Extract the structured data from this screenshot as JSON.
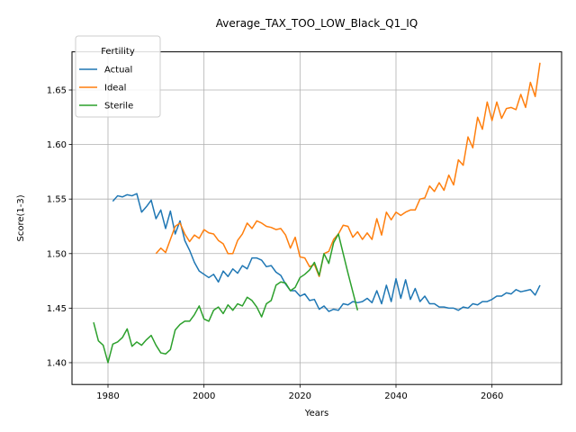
{
  "chart_data": {
    "type": "line",
    "title": "Average_TAX_TOO_LOW_Black_Q1_IQ",
    "xlabel": "Years",
    "ylabel": "Score(1-3)",
    "xlim": [
      1972.5,
      2074.5
    ],
    "ylim": [
      1.38,
      1.685
    ],
    "xticks": [
      1980,
      2000,
      2020,
      2040,
      2060
    ],
    "yticks": [
      1.4,
      1.45,
      1.5,
      1.55,
      1.6,
      1.65
    ],
    "grid": true,
    "legend": {
      "title": "Fertility",
      "placement": "top-left"
    },
    "series": [
      {
        "name": "Actual",
        "color": "#1f77b4",
        "x": [
          1981,
          1982,
          1983,
          1984,
          1985,
          1986,
          1987,
          1988,
          1989,
          1990,
          1991,
          1992,
          1993,
          1994,
          1995,
          1996,
          1997,
          1998,
          1999,
          2000,
          2001,
          2002,
          2003,
          2004,
          2005,
          2006,
          2007,
          2008,
          2009,
          2010,
          2011,
          2012,
          2013,
          2014,
          2015,
          2016,
          2017,
          2018,
          2019,
          2020,
          2021,
          2022,
          2023,
          2024,
          2025,
          2026,
          2027,
          2028,
          2029,
          2030,
          2031,
          2032,
          2033,
          2034,
          2035,
          2036,
          2037,
          2038,
          2039,
          2040,
          2041,
          2042,
          2043,
          2044,
          2045,
          2046,
          2047,
          2048,
          2049,
          2050,
          2051,
          2052,
          2053,
          2054,
          2055,
          2056,
          2057,
          2058,
          2059,
          2060,
          2061,
          2062,
          2063,
          2064,
          2065,
          2066,
          2067,
          2068,
          2069,
          2070
        ],
        "y": [
          1.548,
          1.553,
          1.552,
          1.554,
          1.553,
          1.555,
          1.538,
          1.543,
          1.549,
          1.532,
          1.54,
          1.523,
          1.539,
          1.518,
          1.53,
          1.512,
          1.503,
          1.492,
          1.484,
          1.481,
          1.478,
          1.481,
          1.474,
          1.484,
          1.479,
          1.486,
          1.482,
          1.489,
          1.486,
          1.496,
          1.496,
          1.494,
          1.488,
          1.489,
          1.483,
          1.48,
          1.472,
          1.466,
          1.466,
          1.461,
          1.463,
          1.457,
          1.458,
          1.449,
          1.452,
          1.447,
          1.449,
          1.448,
          1.454,
          1.453,
          1.456,
          1.455,
          1.456,
          1.459,
          1.455,
          1.466,
          1.454,
          1.471,
          1.456,
          1.477,
          1.459,
          1.476,
          1.458,
          1.468,
          1.456,
          1.461,
          1.454,
          1.454,
          1.451,
          1.451,
          1.45,
          1.45,
          1.448,
          1.451,
          1.45,
          1.454,
          1.453,
          1.456,
          1.456,
          1.458,
          1.461,
          1.461,
          1.464,
          1.463,
          1.467,
          1.465,
          1.466,
          1.467,
          1.462,
          1.471
        ]
      },
      {
        "name": "Ideal",
        "color": "#ff7f0e",
        "x": [
          1990,
          1991,
          1992,
          1993,
          1994,
          1995,
          1996,
          1997,
          1998,
          1999,
          2000,
          2001,
          2002,
          2003,
          2004,
          2005,
          2006,
          2007,
          2008,
          2009,
          2010,
          2011,
          2012,
          2013,
          2014,
          2015,
          2016,
          2017,
          2018,
          2019,
          2020,
          2021,
          2022,
          2023,
          2024,
          2025,
          2026,
          2027,
          2028,
          2029,
          2030,
          2031,
          2032,
          2033,
          2034,
          2035,
          2036,
          2037,
          2038,
          2039,
          2040,
          2041,
          2042,
          2043,
          2044,
          2045,
          2046,
          2047,
          2048,
          2049,
          2050,
          2051,
          2052,
          2053,
          2054,
          2055,
          2056,
          2057,
          2058,
          2059,
          2060,
          2061,
          2062,
          2063,
          2064,
          2065,
          2066,
          2067,
          2068,
          2069,
          2070
        ],
        "y": [
          1.5,
          1.505,
          1.501,
          1.513,
          1.525,
          1.528,
          1.518,
          1.511,
          1.517,
          1.514,
          1.522,
          1.519,
          1.518,
          1.512,
          1.509,
          1.5,
          1.5,
          1.512,
          1.518,
          1.528,
          1.523,
          1.53,
          1.528,
          1.525,
          1.524,
          1.522,
          1.523,
          1.517,
          1.505,
          1.515,
          1.497,
          1.496,
          1.488,
          1.49,
          1.479,
          1.5,
          1.502,
          1.513,
          1.518,
          1.526,
          1.525,
          1.515,
          1.52,
          1.513,
          1.519,
          1.513,
          1.532,
          1.517,
          1.538,
          1.531,
          1.538,
          1.535,
          1.538,
          1.54,
          1.54,
          1.55,
          1.551,
          1.562,
          1.557,
          1.565,
          1.558,
          1.572,
          1.563,
          1.586,
          1.581,
          1.607,
          1.597,
          1.625,
          1.614,
          1.639,
          1.622,
          1.639,
          1.624,
          1.633,
          1.634,
          1.632,
          1.646,
          1.634,
          1.657,
          1.644,
          1.675
        ]
      },
      {
        "name": "Sterile",
        "color": "#2ca02c",
        "x": [
          1977,
          1978,
          1979,
          1980,
          1981,
          1982,
          1983,
          1984,
          1985,
          1986,
          1987,
          1988,
          1989,
          1990,
          1991,
          1992,
          1993,
          1994,
          1995,
          1996,
          1997,
          1998,
          1999,
          2000,
          2001,
          2002,
          2003,
          2004,
          2005,
          2006,
          2007,
          2008,
          2009,
          2010,
          2011,
          2012,
          2013,
          2014,
          2015,
          2016,
          2017,
          2018,
          2019,
          2020,
          2021,
          2022,
          2023,
          2024,
          2025,
          2026,
          2027,
          2028,
          2029,
          2030,
          2031,
          2032
        ],
        "y": [
          1.437,
          1.42,
          1.416,
          1.4,
          1.417,
          1.419,
          1.423,
          1.431,
          1.415,
          1.419,
          1.416,
          1.421,
          1.425,
          1.416,
          1.409,
          1.408,
          1.412,
          1.43,
          1.435,
          1.438,
          1.438,
          1.444,
          1.452,
          1.44,
          1.438,
          1.448,
          1.451,
          1.445,
          1.453,
          1.448,
          1.454,
          1.452,
          1.46,
          1.457,
          1.451,
          1.442,
          1.454,
          1.457,
          1.471,
          1.474,
          1.473,
          1.466,
          1.469,
          1.478,
          1.481,
          1.485,
          1.492,
          1.48,
          1.5,
          1.491,
          1.51,
          1.518,
          1.5,
          1.482,
          1.465,
          1.448
        ]
      }
    ]
  }
}
